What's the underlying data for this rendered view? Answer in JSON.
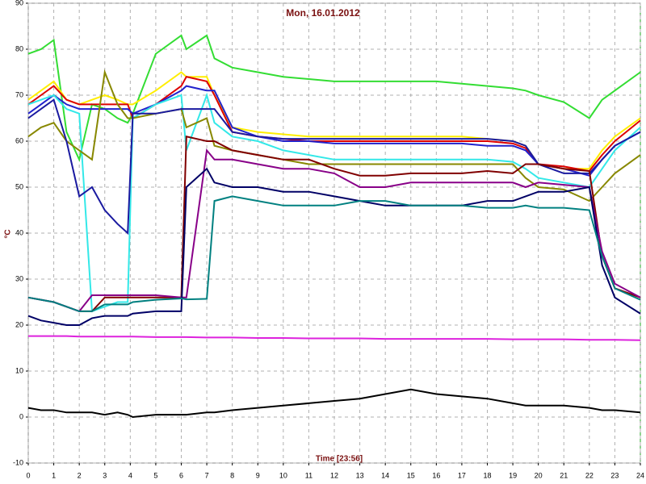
{
  "chart_data": {
    "type": "line",
    "title": "Mon, 16.01.2012",
    "y_label": "°C",
    "x_label": "Time [23:56]",
    "x": [
      0,
      0.5,
      1,
      1.5,
      2,
      2.5,
      3,
      3.5,
      3.9,
      4.1,
      5,
      6,
      6.2,
      7,
      7.3,
      8,
      9,
      10,
      11,
      12,
      13,
      14,
      15,
      16,
      17,
      18,
      19,
      19.5,
      20,
      21,
      22,
      22.5,
      23,
      24
    ],
    "xlim": [
      0,
      24
    ],
    "xticks": [
      0,
      1,
      2,
      3,
      4,
      5,
      6,
      7,
      8,
      9,
      10,
      11,
      12,
      13,
      14,
      15,
      16,
      17,
      18,
      19,
      20,
      21,
      22,
      23,
      24
    ],
    "ylim": [
      -10,
      90
    ],
    "yticks": [
      -10,
      0,
      10,
      20,
      30,
      40,
      50,
      60,
      70,
      80,
      90
    ],
    "grid": true,
    "series": [
      {
        "color": "#33dd33",
        "values": [
          79,
          80,
          82,
          62,
          56,
          68,
          67,
          65,
          64,
          66,
          79,
          83,
          80,
          83,
          78,
          76,
          75,
          74,
          73.5,
          73,
          73,
          73,
          73,
          73,
          72.5,
          72,
          71.5,
          71,
          70,
          68.5,
          65,
          69,
          71,
          75
        ]
      },
      {
        "color": "#ffee00",
        "values": [
          69,
          71,
          73,
          69,
          68,
          69,
          70,
          69,
          68,
          68,
          71,
          75,
          74,
          74,
          70,
          63,
          62,
          61.5,
          61,
          61,
          61,
          61,
          61,
          61,
          61,
          60.5,
          60,
          59,
          55,
          54,
          54,
          58,
          61,
          65
        ]
      },
      {
        "color": "#dd0000",
        "values": [
          68,
          70,
          72,
          69,
          68,
          68,
          68,
          68,
          68,
          65,
          68,
          72,
          74,
          73,
          70,
          62,
          61,
          60.5,
          60,
          60,
          60,
          60,
          60,
          60,
          60,
          60,
          59.5,
          58.5,
          55,
          54.5,
          53.5,
          57,
          60,
          64.5
        ]
      },
      {
        "color": "#2222cc",
        "values": [
          66,
          68,
          70,
          68,
          67,
          67,
          67,
          67,
          67,
          66,
          68,
          71,
          72,
          71,
          71,
          63,
          61,
          60,
          60,
          59.5,
          59.5,
          59.5,
          59.5,
          59.5,
          59.5,
          59,
          59,
          58,
          55,
          54,
          52.5,
          56,
          59,
          62
        ]
      },
      {
        "color": "#33e8e8",
        "values": [
          68,
          69,
          70,
          67,
          66,
          23,
          24,
          25,
          25,
          65,
          68,
          70,
          58,
          70,
          64,
          61,
          60,
          58,
          57,
          56,
          56,
          56,
          56,
          56,
          56,
          56,
          55.5,
          54,
          52,
          51,
          50,
          54,
          58,
          63
        ]
      },
      {
        "color": "#888800",
        "values": [
          61,
          63,
          64,
          60,
          58,
          56,
          75,
          68,
          65,
          65,
          66,
          67,
          63,
          65,
          59,
          58,
          57,
          56,
          55,
          55,
          55,
          55,
          55,
          55,
          55,
          55,
          55,
          52,
          50,
          49.5,
          47,
          50,
          53,
          57
        ]
      },
      {
        "color": "#1a1aa0",
        "values": [
          65,
          67,
          69,
          60,
          48,
          50,
          45,
          42,
          40,
          66,
          66,
          67,
          67,
          67,
          67,
          62,
          61,
          60.5,
          60.5,
          60.5,
          60.5,
          60.5,
          60.5,
          60.5,
          60.5,
          60.5,
          60,
          59,
          55,
          53,
          53,
          56,
          59,
          62
        ]
      },
      {
        "color": "#800000",
        "values": [
          26,
          25.5,
          25,
          24,
          23,
          23,
          26,
          26,
          26,
          26,
          26,
          26,
          61,
          60,
          60,
          58,
          57,
          56,
          56,
          54,
          52.5,
          52.5,
          53,
          53,
          53,
          53.5,
          53,
          55,
          55,
          54,
          53.5,
          35,
          28,
          26
        ]
      },
      {
        "color": "#880088",
        "values": [
          26,
          25.5,
          25,
          24,
          23,
          26.5,
          26.5,
          26.5,
          26.5,
          26.5,
          26.5,
          26,
          26,
          58,
          56,
          56,
          55,
          54,
          54,
          53,
          50,
          50,
          51,
          51,
          51,
          51,
          51,
          50,
          51,
          50.5,
          50,
          36,
          29,
          26
        ]
      },
      {
        "color": "#000066",
        "values": [
          22,
          21,
          20.5,
          20,
          20,
          21.5,
          22,
          22,
          22,
          22.5,
          23,
          23,
          50,
          54,
          51,
          50,
          50,
          49,
          49,
          48,
          47,
          46,
          46,
          46,
          46,
          47,
          47,
          48,
          49,
          49,
          50,
          33,
          26,
          22.5
        ]
      },
      {
        "color": "#008080",
        "values": [
          26,
          25.5,
          25,
          24,
          23,
          23,
          24.5,
          24.5,
          24.5,
          25,
          25.5,
          25.8,
          25.6,
          25.7,
          47,
          48,
          47,
          46,
          46,
          46,
          47,
          47,
          46,
          46,
          46,
          45.5,
          45.5,
          46,
          45.5,
          45.5,
          45,
          35,
          28,
          25.5
        ]
      },
      {
        "color": "#dd22dd",
        "values": [
          17.6,
          17.6,
          17.6,
          17.6,
          17.5,
          17.5,
          17.5,
          17.5,
          17.5,
          17.5,
          17.4,
          17.4,
          17.4,
          17.3,
          17.3,
          17.3,
          17.2,
          17.2,
          17.1,
          17.1,
          17.1,
          17,
          17,
          17,
          17,
          17,
          16.9,
          16.9,
          16.9,
          16.9,
          16.8,
          16.8,
          16.8,
          16.7
        ]
      },
      {
        "color": "#000000",
        "values": [
          2,
          1.5,
          1.5,
          1,
          1,
          1,
          0.5,
          1,
          0.5,
          0,
          0.5,
          0.5,
          0.5,
          1,
          1,
          1.5,
          2,
          2.5,
          3,
          3.5,
          4,
          5,
          6,
          5,
          4.5,
          4,
          3,
          2.5,
          2.5,
          2.5,
          2,
          1.5,
          1.5,
          1
        ]
      }
    ]
  }
}
